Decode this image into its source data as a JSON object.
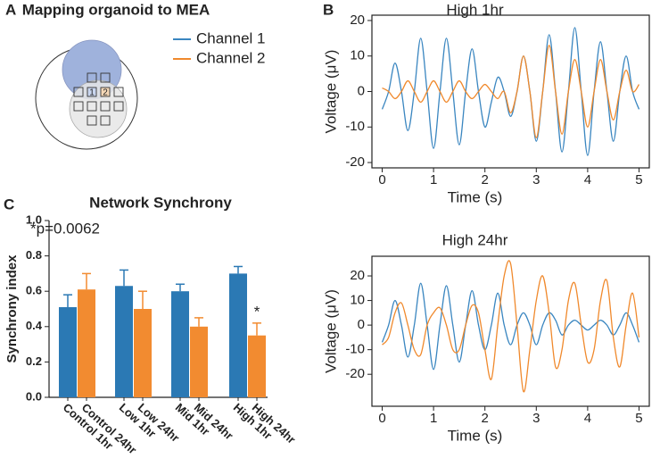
{
  "panel_a": {
    "label": "A",
    "title": "Mapping organoid to MEA",
    "electrode_labels": [
      "1",
      "2"
    ]
  },
  "chart_data": [
    {
      "type": "line",
      "panel": "B",
      "title": "High 1hr",
      "x_label": "Time (s)",
      "y_label": "Voltage (μV)",
      "xlim": [
        -0.2,
        5.2
      ],
      "xticks": [
        0,
        1,
        2,
        3,
        4,
        5
      ],
      "ylim": [
        -21.5,
        21.5
      ],
      "yticks": [
        -20,
        -10,
        0,
        10,
        20
      ],
      "x": [
        0,
        0.125,
        0.25,
        0.375,
        0.5,
        0.625,
        0.75,
        0.875,
        1,
        1.125,
        1.25,
        1.375,
        1.5,
        1.625,
        1.75,
        1.875,
        2,
        2.125,
        2.25,
        2.375,
        2.5,
        2.625,
        2.75,
        2.875,
        3,
        3.125,
        3.25,
        3.375,
        3.5,
        3.625,
        3.75,
        3.875,
        4,
        4.125,
        4.25,
        4.375,
        4.5,
        4.625,
        4.75,
        4.875,
        5
      ],
      "series": [
        {
          "name": "Channel 1",
          "color": "#3a86c0",
          "values": [
            -5,
            0,
            8,
            0,
            -11,
            0,
            15,
            0,
            -16,
            0,
            15,
            0,
            -15,
            0,
            12,
            0,
            -10,
            -3,
            4,
            0,
            -7,
            0,
            10,
            0,
            -14,
            0,
            16,
            0,
            -17,
            0,
            18,
            0,
            -18,
            0,
            14,
            0,
            -14,
            0,
            10,
            0,
            -5
          ]
        },
        {
          "name": "Channel 2",
          "color": "#f0892c",
          "values": [
            1,
            0,
            -2,
            0,
            3,
            0,
            -3,
            0,
            3,
            0,
            -3,
            0,
            3,
            0,
            -2,
            0,
            2,
            0,
            -2,
            0,
            -6,
            0,
            10,
            0,
            -13,
            0,
            13,
            0,
            -12,
            0,
            9,
            0,
            -10,
            0,
            9,
            0,
            -8,
            0,
            6,
            0,
            2
          ]
        }
      ]
    },
    {
      "type": "bar",
      "panel": "C",
      "title": "Network Synchrony",
      "y_label": "Synchrony index",
      "annotation": "*p=0.0062",
      "significance_mark": "*",
      "categories": [
        "Control 1hr",
        "Control 24hr",
        "Low 1hr",
        "Low 24hr",
        "Mid 1hr",
        "Mid 24hr",
        "High 1hr",
        "High 24hr"
      ],
      "values": [
        0.51,
        0.61,
        0.63,
        0.5,
        0.6,
        0.4,
        0.7,
        0.35
      ],
      "errors": [
        0.07,
        0.09,
        0.09,
        0.1,
        0.04,
        0.05,
        0.04,
        0.07
      ],
      "colors": [
        "#2b79b4",
        "#f28b30",
        "#2b79b4",
        "#f28b30",
        "#2b79b4",
        "#f28b30",
        "#2b79b4",
        "#f28b30"
      ],
      "ylim": [
        0,
        1
      ],
      "yticks": [
        {
          "value": 0,
          "label": "0.0"
        },
        0.2,
        0.4,
        0.6,
        0.8,
        {
          "value": 1,
          "label": "1.0"
        }
      ]
    },
    {
      "type": "line",
      "title": "High 24hr",
      "x_label": "Time (s)",
      "y_label": "Voltage (μV)",
      "xlim": [
        -0.2,
        5.2
      ],
      "xticks": [
        0,
        1,
        2,
        3,
        4,
        5
      ],
      "ylim": [
        -33,
        28
      ],
      "yticks": [
        -20,
        -10,
        0,
        10,
        20
      ],
      "x": [
        0,
        0.125,
        0.25,
        0.375,
        0.5,
        0.625,
        0.75,
        0.875,
        1,
        1.125,
        1.25,
        1.375,
        1.5,
        1.625,
        1.75,
        1.875,
        2,
        2.125,
        2.25,
        2.375,
        2.5,
        2.625,
        2.75,
        2.875,
        3,
        3.125,
        3.25,
        3.375,
        3.5,
        3.625,
        3.75,
        3.875,
        4,
        4.125,
        4.25,
        4.375,
        4.5,
        4.625,
        4.75,
        4.875,
        5
      ],
      "series": [
        {
          "name": "Channel 1",
          "color": "#3a86c0",
          "values": [
            -7,
            0,
            10,
            0,
            -13,
            0,
            17,
            0,
            -18,
            0,
            16,
            0,
            -15,
            0,
            14,
            0,
            -10,
            0,
            13,
            0,
            -8,
            0,
            5,
            0,
            -8,
            0,
            5,
            2,
            -4,
            0,
            2,
            0,
            -2,
            0,
            2,
            0,
            -4,
            0,
            5,
            0,
            -7
          ]
        },
        {
          "name": "Channel 2",
          "color": "#f0892c",
          "values": [
            -8,
            -5,
            5,
            9,
            0,
            -10,
            -12,
            0,
            5,
            7,
            0,
            -10,
            -10,
            0,
            8,
            5,
            -10,
            -22,
            0,
            20,
            25,
            0,
            -27,
            -10,
            10,
            20,
            5,
            -17,
            -10,
            10,
            17,
            0,
            -15,
            -10,
            10,
            18,
            -5,
            -17,
            0,
            13,
            -5
          ]
        }
      ]
    }
  ]
}
